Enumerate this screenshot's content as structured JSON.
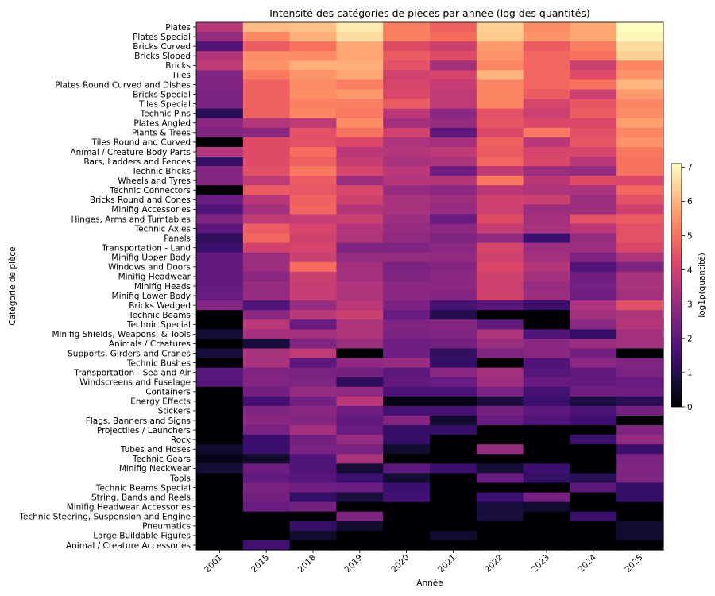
{
  "chart_data": {
    "type": "heatmap",
    "title": "Intensité des catégories de pièces par année (log des quantités)",
    "xlabel": "Année",
    "ylabel": "Catégorie de pièce",
    "colorbar": {
      "label": "log1p(quantité)",
      "range": [
        0,
        7.1
      ],
      "ticks": [
        "0",
        "1",
        "2",
        "3",
        "4",
        "5",
        "6",
        "7"
      ],
      "colormap": "magma"
    },
    "x": [
      "2001",
      "2015",
      "2018",
      "2019",
      "2020",
      "2021",
      "2022",
      "2023",
      "2024",
      "2025"
    ],
    "y": [
      "Plates",
      "Plates Special",
      "Bricks Curved",
      "Bricks Sloped",
      "Bricks",
      "Tiles",
      "Plates Round Curved and Dishes",
      "Bricks Special",
      "Tiles Special",
      "Technic Pins",
      "Plates Angled",
      "Plants & Trees",
      "Tiles Round and Curved",
      "Animal / Creature Body Parts",
      "Bars, Ladders and Fences",
      "Technic Bricks",
      "Wheels and Tyres",
      "Technic Connectors",
      "Bricks Round and Cones",
      "Minifig Accessories",
      "Hinges, Arms and Turntables",
      "Technic Axles",
      "Panels",
      "Transportation - Land",
      "Minifig Upper Body",
      "Windows and Doors",
      "Minifig Headwear",
      "Minifig Heads",
      "Minifig Lower Body",
      "Bricks Wedged",
      "Technic Beams",
      "Technic Special",
      "Minifig Shields, Weapons, & Tools",
      "Animals / Creatures",
      "Supports, Girders and Cranes",
      "Technic Bushes",
      "Transportation - Sea and Air",
      "Windscreens and Fuselage",
      "Containers",
      "Energy Effects",
      "Stickers",
      "Flags, Banners and Signs",
      "Projectiles / Launchers",
      "Rock",
      "Tubes and Hoses",
      "Technic Gears",
      "Minifig Neckwear",
      "Tools",
      "Technic Beams Special",
      "String, Bands and Reels",
      "Minifig Headwear Accessories",
      "Technic Steering, Suspension and Engine",
      "Pneumatics",
      "Large Buildable Figures",
      "Animal / Creature Accessories"
    ],
    "values": [
      [
        3.6,
        6.1,
        6.2,
        6.8,
        5.2,
        4.7,
        6.4,
        5.4,
        5.8,
        7.1
      ],
      [
        3.0,
        5.3,
        5.9,
        6.6,
        5.2,
        4.9,
        6.3,
        5.5,
        5.8,
        7.0
      ],
      [
        1.8,
        4.6,
        5.0,
        5.8,
        4.3,
        3.9,
        5.6,
        4.6,
        5.2,
        6.6
      ],
      [
        3.5,
        5.4,
        5.4,
        5.8,
        4.6,
        4.3,
        5.5,
        4.8,
        5.0,
        6.4
      ],
      [
        3.7,
        5.5,
        5.9,
        5.9,
        4.4,
        3.2,
        5.3,
        4.8,
        3.9,
        5.3
      ],
      [
        2.6,
        5.1,
        5.5,
        5.8,
        4.0,
        4.1,
        6.0,
        4.8,
        4.3,
        5.5
      ],
      [
        2.6,
        4.7,
        5.4,
        5.2,
        4.1,
        3.8,
        5.3,
        4.8,
        5.0,
        6.0
      ],
      [
        2.5,
        4.7,
        5.4,
        5.6,
        4.2,
        3.7,
        5.3,
        4.6,
        3.9,
        5.6
      ],
      [
        2.5,
        4.7,
        5.2,
        5.2,
        4.6,
        3.7,
        5.3,
        4.1,
        4.5,
        5.3
      ],
      [
        1.1,
        4.7,
        5.3,
        5.1,
        3.6,
        2.8,
        4.4,
        3.9,
        4.6,
        5.4
      ],
      [
        2.8,
        3.5,
        3.7,
        5.4,
        3.2,
        3.0,
        4.5,
        4.2,
        4.2,
        5.7
      ],
      [
        2.6,
        2.8,
        4.4,
        5.0,
        4.0,
        2.0,
        4.2,
        5.1,
        4.4,
        5.3
      ],
      [
        0.0,
        4.3,
        4.4,
        4.2,
        3.4,
        3.2,
        4.7,
        3.6,
        4.5,
        5.5
      ],
      [
        3.5,
        4.3,
        4.9,
        3.6,
        3.5,
        3.7,
        4.6,
        4.1,
        4.1,
        5.1
      ],
      [
        1.3,
        4.3,
        4.7,
        3.8,
        3.3,
        3.4,
        4.8,
        4.2,
        3.6,
        5.0
      ],
      [
        2.7,
        4.4,
        5.1,
        4.1,
        3.6,
        2.3,
        3.7,
        3.1,
        3.0,
        5.0
      ],
      [
        2.7,
        3.7,
        4.6,
        3.1,
        3.5,
        3.5,
        5.1,
        3.6,
        4.3,
        4.2
      ],
      [
        0.0,
        4.6,
        4.5,
        4.2,
        3.0,
        2.8,
        3.6,
        3.4,
        3.3,
        4.8
      ],
      [
        2.2,
        3.6,
        4.7,
        4.0,
        3.3,
        3.1,
        4.0,
        3.9,
        3.1,
        4.4
      ],
      [
        1.8,
        3.2,
        4.8,
        3.5,
        3.3,
        3.0,
        3.9,
        3.1,
        3.1,
        4.0
      ],
      [
        2.6,
        3.7,
        3.8,
        3.9,
        3.1,
        2.2,
        4.3,
        3.2,
        4.4,
        4.6
      ],
      [
        2.0,
        4.6,
        4.1,
        3.5,
        3.0,
        2.8,
        3.8,
        3.3,
        3.6,
        4.4
      ],
      [
        1.2,
        4.8,
        4.0,
        3.4,
        2.9,
        2.6,
        2.9,
        1.4,
        3.0,
        4.4
      ],
      [
        1.4,
        4.0,
        4.1,
        2.6,
        2.6,
        2.8,
        4.1,
        3.1,
        3.1,
        4.2
      ],
      [
        2.1,
        3.1,
        3.9,
        3.0,
        3.0,
        2.9,
        4.0,
        3.2,
        2.6,
        3.4
      ],
      [
        2.1,
        3.1,
        4.9,
        3.2,
        2.5,
        2.7,
        4.2,
        3.5,
        1.8,
        2.6
      ],
      [
        2.1,
        2.8,
        3.9,
        3.2,
        2.6,
        2.8,
        4.0,
        3.2,
        2.3,
        3.3
      ],
      [
        2.1,
        3.0,
        3.8,
        3.4,
        2.8,
        2.8,
        3.9,
        3.0,
        2.4,
        3.3
      ],
      [
        2.2,
        3.0,
        3.8,
        3.4,
        2.8,
        2.7,
        4.0,
        3.1,
        2.3,
        3.2
      ],
      [
        2.7,
        1.8,
        3.0,
        3.6,
        2.5,
        1.6,
        1.9,
        1.4,
        3.4,
        4.4
      ],
      [
        0.0,
        2.8,
        3.6,
        3.9,
        2.2,
        1.0,
        0.0,
        0.0,
        3.2,
        3.4
      ],
      [
        0.0,
        3.6,
        2.2,
        3.4,
        2.6,
        2.7,
        2.1,
        0.0,
        2.8,
        3.5
      ],
      [
        0.7,
        3.2,
        3.2,
        3.4,
        2.5,
        2.6,
        3.4,
        1.8,
        1.3,
        3.2
      ],
      [
        0.0,
        0.8,
        2.6,
        3.1,
        2.3,
        2.4,
        3.1,
        2.8,
        3.1,
        3.2
      ],
      [
        0.8,
        3.3,
        3.7,
        0.0,
        2.3,
        1.2,
        2.6,
        2.8,
        2.4,
        0.0
      ],
      [
        0.0,
        3.3,
        2.0,
        2.9,
        3.0,
        1.3,
        0.0,
        1.8,
        2.8,
        2.6
      ],
      [
        1.9,
        2.6,
        2.5,
        2.4,
        2.0,
        2.8,
        3.2,
        1.9,
        2.1,
        2.5
      ],
      [
        1.9,
        2.7,
        2.6,
        1.2,
        2.1,
        2.2,
        3.1,
        2.2,
        2.1,
        2.2
      ],
      [
        0.0,
        2.4,
        3.0,
        2.9,
        1.7,
        1.7,
        2.5,
        1.6,
        2.3,
        2.3
      ],
      [
        0.0,
        1.6,
        2.4,
        3.6,
        0.2,
        0.2,
        0.8,
        1.4,
        0.9,
        1.1
      ],
      [
        0.0,
        2.6,
        2.8,
        2.3,
        1.6,
        1.6,
        2.4,
        2.0,
        1.7,
        2.4
      ],
      [
        0.0,
        2.8,
        2.7,
        2.1,
        2.7,
        0.6,
        2.2,
        1.8,
        1.5,
        0.0
      ],
      [
        0.0,
        2.5,
        3.2,
        2.2,
        1.3,
        1.3,
        0.0,
        0.0,
        0.0,
        2.6
      ],
      [
        0.0,
        1.4,
        2.4,
        3.0,
        1.3,
        0.0,
        0.0,
        0.0,
        1.4,
        3.0
      ],
      [
        0.6,
        1.4,
        2.5,
        2.5,
        0.6,
        0.0,
        3.0,
        0.0,
        0.0,
        1.4
      ],
      [
        0.3,
        0.6,
        1.8,
        3.3,
        0.0,
        0.0,
        0.0,
        0.0,
        0.0,
        2.5
      ],
      [
        0.7,
        2.3,
        1.8,
        0.7,
        2.0,
        1.4,
        0.7,
        1.4,
        0.0,
        2.6
      ],
      [
        0.0,
        2.1,
        1.9,
        1.4,
        0.7,
        0.0,
        2.2,
        1.3,
        1.1,
        2.6
      ],
      [
        0.0,
        2.5,
        2.3,
        2.2,
        1.4,
        0.0,
        0.0,
        0.0,
        2.0,
        1.3
      ],
      [
        0.0,
        2.4,
        1.3,
        0.8,
        1.5,
        0.0,
        1.4,
        2.4,
        0.0,
        1.3
      ],
      [
        0.0,
        2.2,
        2.4,
        0.0,
        0.0,
        0.0,
        0.8,
        0.6,
        0.0,
        0.0
      ],
      [
        0.0,
        0.0,
        0.0,
        2.6,
        0.0,
        0.0,
        0.8,
        0.0,
        1.4,
        0.0
      ],
      [
        0.0,
        0.0,
        1.3,
        0.6,
        0.0,
        0.0,
        0.0,
        0.0,
        0.0,
        0.6
      ],
      [
        0.0,
        0.0,
        0.6,
        0.0,
        0.0,
        0.6,
        0.0,
        0.0,
        0.0,
        0.6
      ],
      [
        0.0,
        1.5,
        0.0,
        0.0,
        0.0,
        0.0,
        0.0,
        0.0,
        0.0,
        0.0
      ]
    ]
  }
}
